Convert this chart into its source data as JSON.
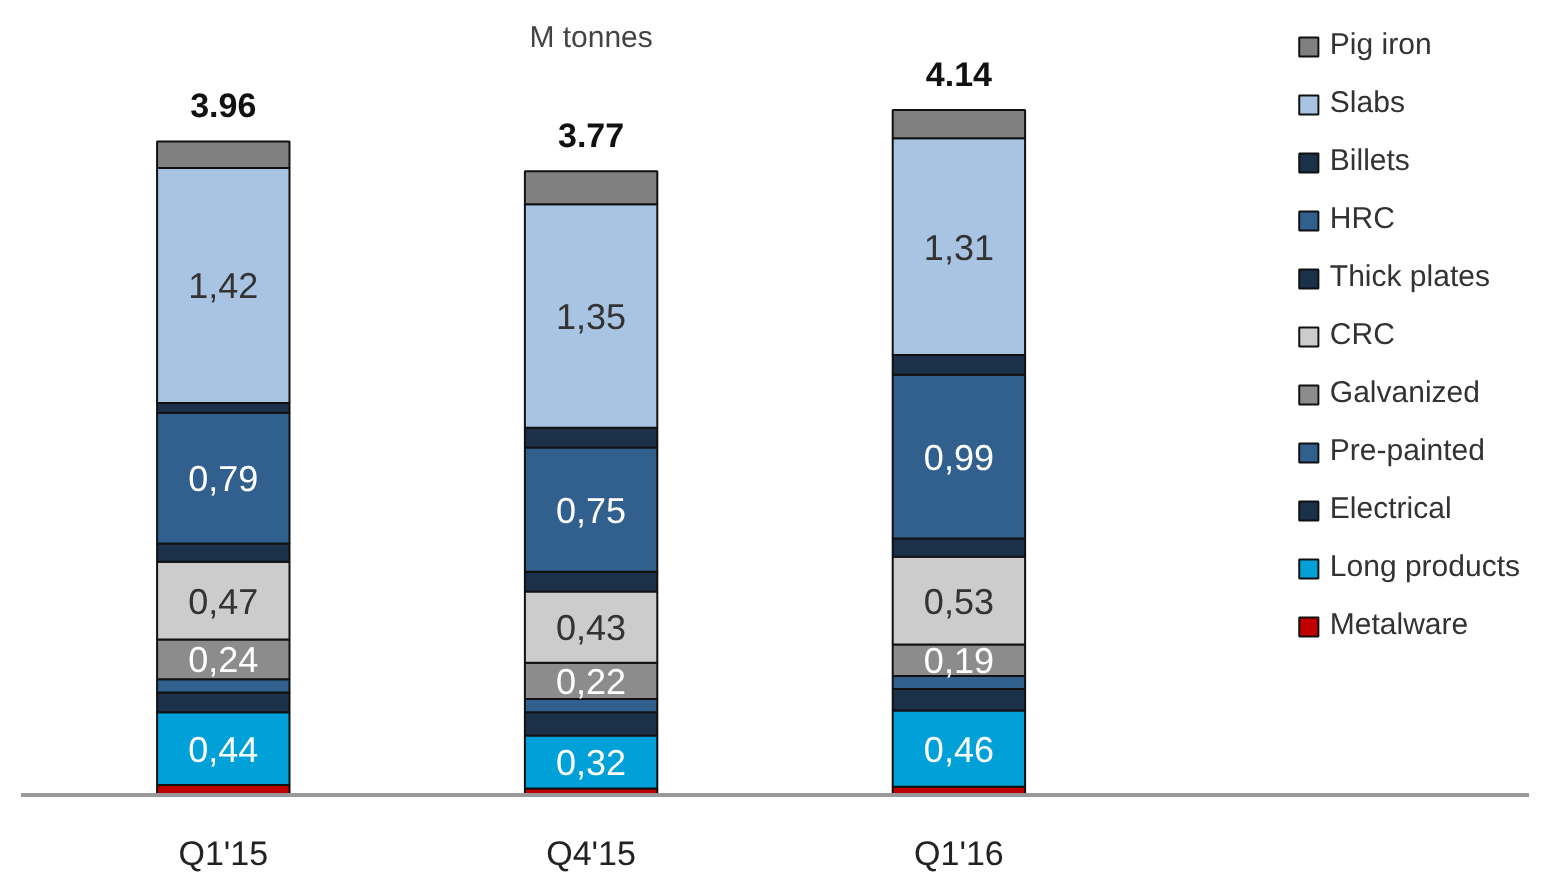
{
  "chart_data": {
    "type": "bar",
    "stacked": true,
    "subtitle": "M tonnes",
    "categories": [
      "Q1'15",
      "Q4'15",
      "Q1'16"
    ],
    "legend": "right",
    "grid": false,
    "totals": [
      "3.96",
      "3.77",
      "4.14"
    ],
    "series": [
      {
        "name": "Metalware",
        "color": "#c00000",
        "values": [
          0.06,
          0.04,
          0.05
        ],
        "value_labels": [
          null,
          null,
          null
        ]
      },
      {
        "name": "Long products",
        "color": "#00a0d8",
        "values": [
          0.44,
          0.32,
          0.46
        ],
        "value_labels": [
          "0,44",
          "0,32",
          "0,46"
        ]
      },
      {
        "name": "Electrical",
        "color": "#1b3049",
        "values": [
          0.12,
          0.14,
          0.13
        ],
        "value_labels": [
          null,
          null,
          null
        ]
      },
      {
        "name": "Pre-painted",
        "color": "#31608f",
        "values": [
          0.08,
          0.08,
          0.08
        ],
        "value_labels": [
          null,
          null,
          null
        ]
      },
      {
        "name": "Galvanized",
        "color": "#8c8c8c",
        "values": [
          0.24,
          0.22,
          0.19
        ],
        "value_labels": [
          "0,24",
          "0,22",
          "0,19"
        ]
      },
      {
        "name": "CRC",
        "color": "#cccccc",
        "values": [
          0.47,
          0.43,
          0.53
        ],
        "value_labels": [
          "0,47",
          "0,43",
          "0,53"
        ]
      },
      {
        "name": "Thick plates",
        "color": "#1b3049",
        "values": [
          0.11,
          0.12,
          0.11
        ],
        "value_labels": [
          null,
          null,
          null
        ]
      },
      {
        "name": "HRC",
        "color": "#31608f",
        "values": [
          0.79,
          0.75,
          0.99
        ],
        "value_labels": [
          "0,79",
          "0,75",
          "0,99"
        ]
      },
      {
        "name": "Billets",
        "color": "#1b3049",
        "values": [
          0.06,
          0.12,
          0.12
        ],
        "value_labels": [
          null,
          null,
          null
        ]
      },
      {
        "name": "Slabs",
        "color": "#a9c4e2",
        "values": [
          1.42,
          1.35,
          1.31
        ],
        "value_labels": [
          "1,42",
          "1,35",
          "1,31"
        ]
      },
      {
        "name": "Pig iron",
        "color": "#808080",
        "values": [
          0.16,
          0.2,
          0.17
        ],
        "value_labels": [
          null,
          null,
          null
        ]
      }
    ]
  }
}
